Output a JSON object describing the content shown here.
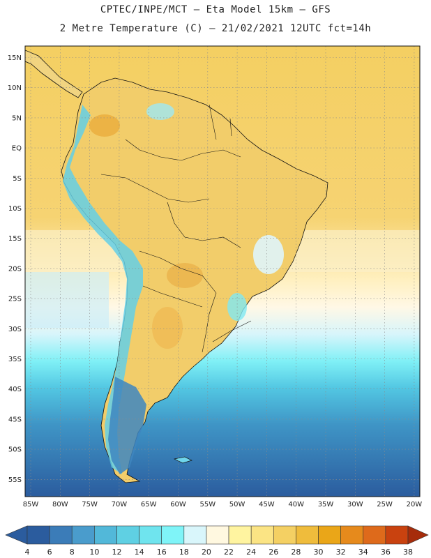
{
  "title_line1": "CPTEC/INPE/MCT –  Eta Model 15km – GFS",
  "title_line2": "2 Metre Temperature (C) – 21/02/2021 12UTC fct=14h",
  "lat_labels": [
    "15N",
    "10N",
    "5N",
    "EQ",
    "5S",
    "10S",
    "15S",
    "20S",
    "25S",
    "30S",
    "35S",
    "40S",
    "45S",
    "50S",
    "55S"
  ],
  "lon_labels": [
    "85W",
    "80W",
    "75W",
    "70W",
    "65W",
    "60W",
    "55W",
    "50W",
    "45W",
    "40W",
    "35W",
    "30W",
    "25W",
    "20W"
  ],
  "colorbar": {
    "ticks": [
      "4",
      "6",
      "8",
      "10",
      "12",
      "14",
      "16",
      "18",
      "20",
      "22",
      "24",
      "26",
      "28",
      "30",
      "32",
      "34",
      "36",
      "38"
    ],
    "colors": [
      "#2b5c9e",
      "#3b7cb8",
      "#4a9ccc",
      "#52b8d9",
      "#5fd0e3",
      "#6fe4ee",
      "#7ff4f8",
      "#d9f6fb",
      "#fff8e0",
      "#fff4a0",
      "#fbe484",
      "#f4d063",
      "#efbc3c",
      "#eaa618",
      "#e68a1c",
      "#de6a1b",
      "#c9420f",
      "#a62c0b"
    ]
  },
  "colors": {
    "ocean_warm": "#f3cc5e",
    "ocean_pale": "#fff4d6",
    "land_warm": "#f1cf6e",
    "andes_cold": "#6fd6ec",
    "southern_ocean": "#2f6fae"
  }
}
